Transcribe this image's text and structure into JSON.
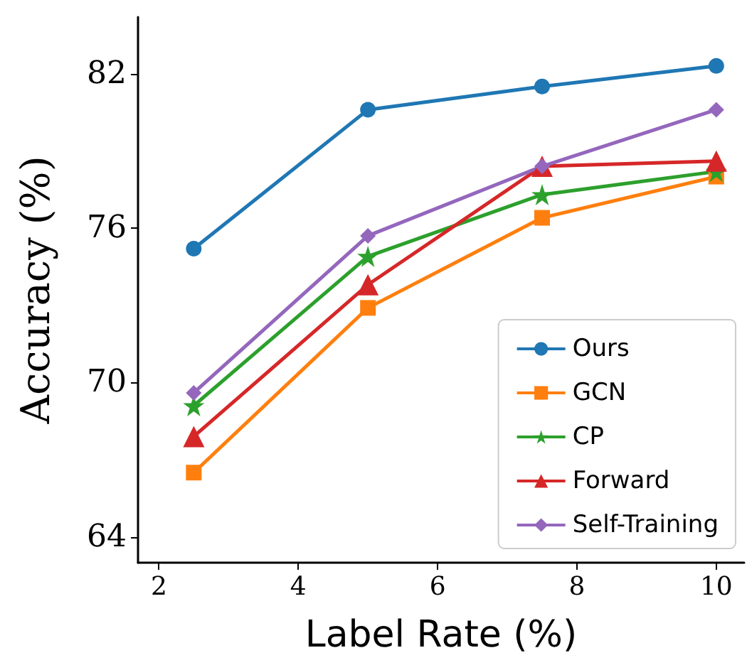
{
  "chart_data": {
    "type": "line",
    "xlabel": "Label Rate (%)",
    "ylabel": "Accuracy (%)",
    "x": [
      2.5,
      5,
      7.5,
      10
    ],
    "xlim": [
      1.7,
      10.4
    ],
    "xticks": [
      2,
      4,
      6,
      8,
      10
    ],
    "ylim": [
      63,
      84.2
    ],
    "yticks": [
      64,
      70,
      76,
      82
    ],
    "grid": false,
    "legend": "bottom right",
    "line_style": "solid",
    "series": [
      {
        "name": "Ours",
        "color": "#1f77b4",
        "marker": "circle",
        "values": [
          75.2,
          80.6,
          81.5,
          82.3
        ]
      },
      {
        "name": "GCN",
        "color": "#ff7f0e",
        "marker": "square",
        "values": [
          66.5,
          72.9,
          76.4,
          78.0
        ]
      },
      {
        "name": "CP",
        "color": "#2ca02c",
        "marker": "star",
        "values": [
          69.1,
          74.9,
          77.3,
          78.2
        ]
      },
      {
        "name": "Forward",
        "color": "#d62728",
        "marker": "triangle",
        "values": [
          67.9,
          73.8,
          78.4,
          78.6
        ]
      },
      {
        "name": "Self-Training",
        "color": "#9467bd",
        "marker": "diamond",
        "values": [
          69.6,
          75.7,
          78.4,
          80.6
        ]
      }
    ]
  }
}
